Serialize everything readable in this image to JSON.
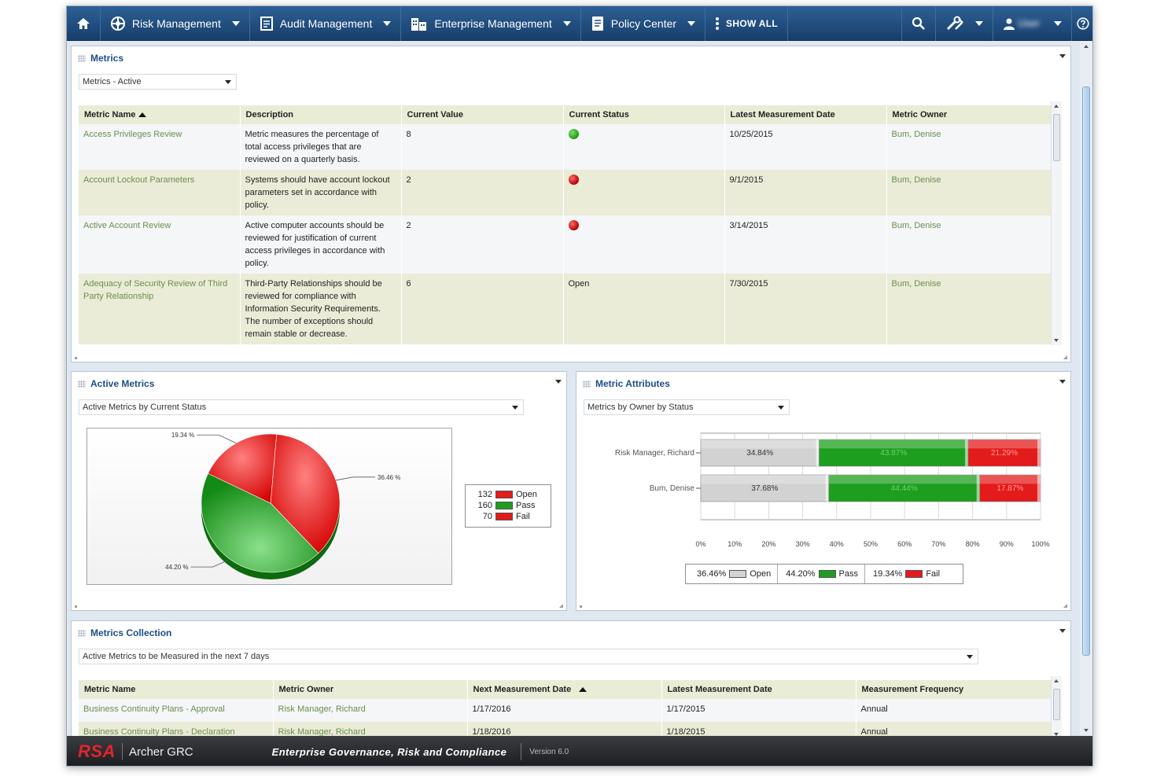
{
  "nav": {
    "items": [
      {
        "label": "Risk Management",
        "icon": "risk-icon"
      },
      {
        "label": "Audit Management",
        "icon": "audit-icon"
      },
      {
        "label": "Enterprise Management",
        "icon": "enterprise-icon"
      },
      {
        "label": "Policy Center",
        "icon": "policy-icon"
      }
    ],
    "show_all": "SHOW ALL",
    "user_name": "User"
  },
  "metrics": {
    "title": "Metrics",
    "view_select": "Metrics - Active",
    "columns": [
      "Metric Name",
      "Description",
      "Current Value",
      "Current Status",
      "Latest Measurement Date",
      "Metric Owner"
    ],
    "rows": [
      {
        "name": "Access Privileges Review",
        "description": "Metric measures the percentage of total access privileges that are reviewed on a quarterly basis.",
        "value": "8",
        "status": "green",
        "status_text": "",
        "date": "10/25/2015",
        "owner": "Bum, Denise"
      },
      {
        "name": "Account Lockout Parameters",
        "description": "Systems should have account lockout parameters set in accordance with policy.",
        "value": "2",
        "status": "red",
        "status_text": "",
        "date": "9/1/2015",
        "owner": "Bum, Denise"
      },
      {
        "name": "Active Account Review",
        "description": "Active computer accounts should be reviewed for justification of current access privileges in accordance with policy.",
        "value": "2",
        "status": "red",
        "status_text": "",
        "date": "3/14/2015",
        "owner": "Bum, Denise"
      },
      {
        "name": "Adequacy of Security Review of Third Party Relationship",
        "description": "Third-Party Relationships should be reviewed for compliance with Information Security Requirements. The number of exceptions should remain stable or decrease.",
        "value": "6",
        "status": "text",
        "status_text": "Open",
        "date": "7/30/2015",
        "owner": "Bum, Denise"
      }
    ]
  },
  "active_metrics": {
    "title": "Active Metrics",
    "view_select": "Active Metrics by Current Status",
    "legend": [
      {
        "count": "132",
        "label": "Open"
      },
      {
        "count": "160",
        "label": "Pass"
      },
      {
        "count": "70",
        "label": "Fail"
      }
    ],
    "colors": {
      "open": "#e41b1b",
      "pass": "#1e9e1e",
      "fail": "#e41b1b"
    }
  },
  "metric_attributes": {
    "title": "Metric Attributes",
    "view_select": "Metrics by Owner by Status"
  },
  "metrics_collection": {
    "title": "Metrics Collection",
    "view_select": "Active Metrics to be Measured in the next 7 days",
    "columns": [
      "Metric Name",
      "Metric Owner",
      "Next Measurement Date",
      "Latest Measurement Date",
      "Measurement Frequency"
    ],
    "rows": [
      {
        "name": "Business Continuity Plans - Approval",
        "owner": "Risk Manager, Richard",
        "next": "1/17/2016",
        "latest": "1/17/2015",
        "freq": "Annual"
      },
      {
        "name": "Business Continuity Plans - Declaration",
        "owner": "Risk Manager, Richard",
        "next": "1/18/2016",
        "latest": "1/18/2015",
        "freq": "Annual"
      }
    ]
  },
  "footer": {
    "brand": "RSA",
    "product": "Archer GRC",
    "tagline": "Enterprise Governance, Risk and Compliance",
    "version": "Version 6.0"
  },
  "chart_data": [
    {
      "type": "pie",
      "categories": [
        "Open",
        "Pass",
        "Fail"
      ],
      "values": [
        36.46,
        44.2,
        19.34
      ],
      "slice_labels": [
        "36.46 %",
        "44.20 %",
        "19.34 %"
      ],
      "counts": [
        132,
        160,
        70
      ],
      "legend_position": "right"
    },
    {
      "type": "bar",
      "orientation": "horizontal",
      "stacked": true,
      "percent": true,
      "categories": [
        "Risk Manager, Richard",
        "Bum, Denise"
      ],
      "series": [
        {
          "name": "Open",
          "values": [
            34.84,
            37.68
          ],
          "labels": [
            "34.84%",
            "37.68%"
          ]
        },
        {
          "name": "Pass",
          "values": [
            43.87,
            44.44
          ],
          "labels": [
            "43.87%",
            "44.44%"
          ]
        },
        {
          "name": "Fail",
          "values": [
            21.29,
            17.87
          ],
          "labels": [
            "21.29%",
            "17.87%"
          ]
        }
      ],
      "xlim": [
        0,
        100
      ],
      "x_ticks": [
        "0%",
        "10%",
        "20%",
        "30%",
        "40%",
        "50%",
        "60%",
        "70%",
        "80%",
        "90%",
        "100%"
      ],
      "legend": [
        {
          "value": "36.46%",
          "label": "Open"
        },
        {
          "value": "44.20%",
          "label": "Pass"
        },
        {
          "value": "19.34%",
          "label": "Fail"
        }
      ],
      "legend_position": "bottom",
      "grid": true
    }
  ]
}
